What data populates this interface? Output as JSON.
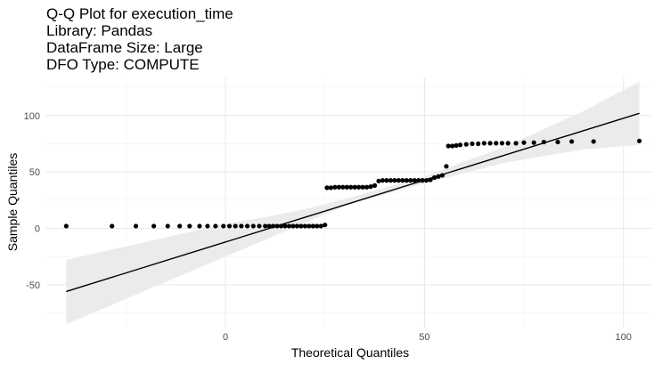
{
  "chart_data": {
    "type": "scatter",
    "title_lines": [
      "Q-Q Plot for execution_time",
      "Library: Pandas",
      "DataFrame Size: Large",
      "DFO Type: COMPUTE"
    ],
    "xlabel": "Theoretical Quantiles",
    "ylabel": "Sample Quantiles",
    "xlim": [
      -45,
      107
    ],
    "ylim": [
      -88,
      133
    ],
    "x_ticks": [
      0,
      50,
      100
    ],
    "y_ticks": [
      -50,
      0,
      50,
      100
    ],
    "grid": true,
    "reference_line": {
      "x": [
        -40,
        104
      ],
      "y": [
        -56,
        102
      ]
    },
    "confidence_band": {
      "x": [
        -40,
        -20,
        0,
        10,
        20,
        30,
        50,
        70,
        90,
        104
      ],
      "lower": [
        -85,
        -55,
        -25,
        -10,
        5,
        20,
        40,
        58,
        70,
        74
      ],
      "upper": [
        -28,
        -12,
        4,
        10,
        17,
        26,
        46,
        72,
        104,
        130
      ]
    },
    "series": [
      {
        "points": [
          [
            -40,
            2
          ],
          [
            -28.5,
            2
          ],
          [
            -22.5,
            2
          ],
          [
            -18,
            2
          ],
          [
            -14.5,
            2
          ],
          [
            -11.5,
            2
          ],
          [
            -9,
            2
          ],
          [
            -6.5,
            2
          ],
          [
            -4.5,
            2
          ],
          [
            -2.5,
            2
          ],
          [
            -0.5,
            2
          ],
          [
            1,
            2
          ],
          [
            2.5,
            2
          ],
          [
            4,
            2
          ],
          [
            5.5,
            2
          ],
          [
            7,
            2
          ],
          [
            8.5,
            2
          ],
          [
            10,
            2
          ],
          [
            11,
            2
          ],
          [
            12,
            2
          ],
          [
            13,
            2
          ],
          [
            14,
            2
          ],
          [
            15,
            2
          ],
          [
            16,
            2
          ],
          [
            17,
            2
          ],
          [
            18,
            2
          ],
          [
            19,
            2
          ],
          [
            20,
            2
          ],
          [
            21,
            2
          ],
          [
            22,
            2
          ],
          [
            23,
            2
          ],
          [
            24,
            2
          ],
          [
            25,
            3
          ],
          [
            25.5,
            36
          ],
          [
            26.5,
            36
          ],
          [
            27.5,
            36.5
          ],
          [
            28.5,
            36.5
          ],
          [
            29.5,
            36.5
          ],
          [
            30.5,
            36.5
          ],
          [
            31.5,
            36.5
          ],
          [
            32.5,
            36.5
          ],
          [
            33.5,
            36.5
          ],
          [
            34.5,
            36.5
          ],
          [
            35.5,
            36.5
          ],
          [
            36.5,
            37
          ],
          [
            37.5,
            38
          ],
          [
            38.5,
            42
          ],
          [
            39.5,
            42.5
          ],
          [
            40.5,
            42.5
          ],
          [
            41.5,
            42.5
          ],
          [
            42.5,
            42.5
          ],
          [
            43.5,
            42.5
          ],
          [
            44.5,
            42.5
          ],
          [
            45.5,
            42.5
          ],
          [
            46.5,
            42.5
          ],
          [
            47.5,
            42.5
          ],
          [
            48.5,
            42.5
          ],
          [
            49.5,
            42.5
          ],
          [
            50.5,
            42.5
          ],
          [
            51.5,
            43
          ],
          [
            52.5,
            45
          ],
          [
            53.5,
            46
          ],
          [
            54.5,
            47
          ],
          [
            55.5,
            55
          ],
          [
            56,
            73
          ],
          [
            57,
            73
          ],
          [
            58,
            73.5
          ],
          [
            59,
            74
          ],
          [
            60.5,
            74.5
          ],
          [
            62,
            75
          ],
          [
            63.5,
            75
          ],
          [
            65,
            75.5
          ],
          [
            66.5,
            75.5
          ],
          [
            68,
            75.5
          ],
          [
            69.5,
            75.5
          ],
          [
            71,
            75.5
          ],
          [
            73,
            75.5
          ],
          [
            75,
            76
          ],
          [
            77.5,
            76
          ],
          [
            80,
            76.5
          ],
          [
            83.5,
            76.5
          ],
          [
            87,
            77
          ],
          [
            92.5,
            77
          ],
          [
            104,
            77.5
          ]
        ]
      }
    ]
  }
}
